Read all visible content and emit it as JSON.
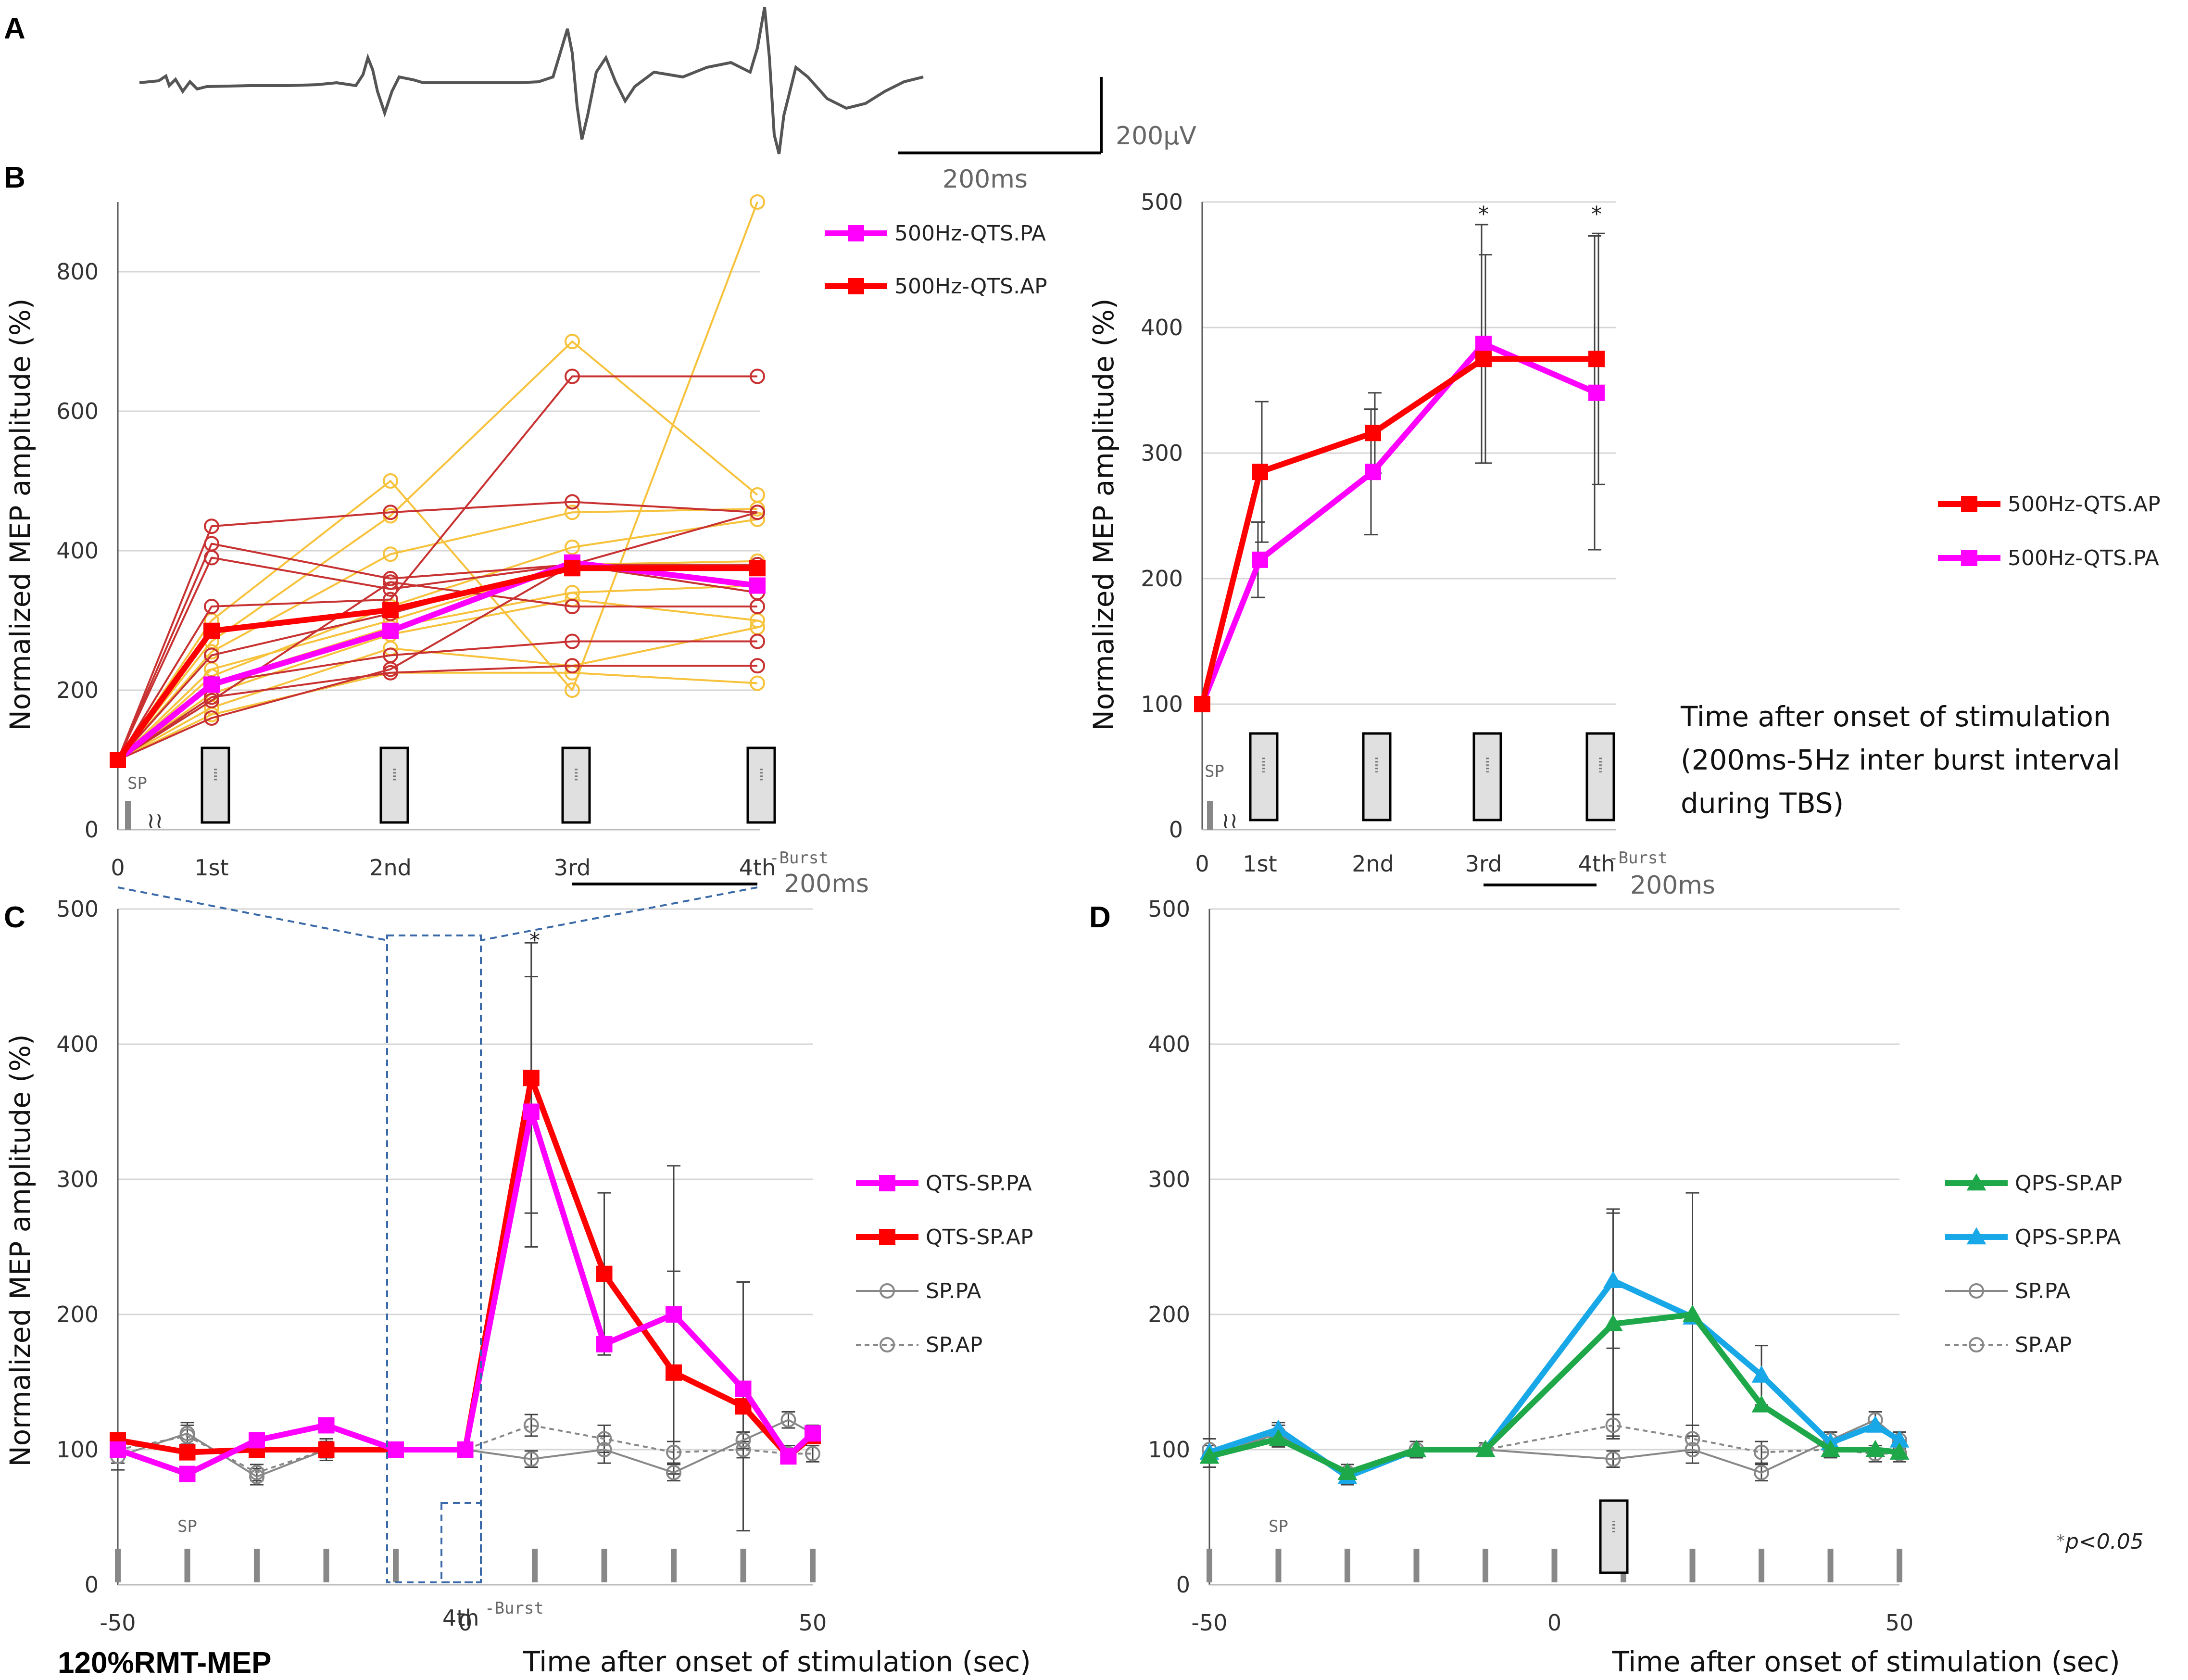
{
  "chart_data": [
    {
      "id": "A",
      "type": "line",
      "title": "",
      "description_values": {
        "amplitude_scale": "200µV",
        "time_scale": "200ms"
      }
    },
    {
      "id": "B_left",
      "type": "line",
      "title": "",
      "ylabel": "Normalized MEP amplitude (%)",
      "xlabel": "",
      "ylim": [
        0,
        900
      ],
      "yticks": [
        0,
        200,
        400,
        600,
        800
      ],
      "categories": [
        "0",
        "1st",
        "2nd",
        "3rd",
        "4th"
      ],
      "burst_suffix": "-Burst",
      "sp_label": "SP",
      "scale_label": "200ms",
      "series": [
        {
          "name": "500Hz-QTS.PA",
          "color": "#ff00ff",
          "values": [
            100,
            208,
            285,
            383,
            350
          ]
        },
        {
          "name": "500Hz-QTS.AP",
          "color": "#ff0000",
          "values": [
            100,
            285,
            315,
            375,
            375
          ]
        }
      ],
      "individual_AP": [
        [
          100,
          435,
          455,
          470,
          455
        ],
        [
          100,
          410,
          360,
          380,
          455
        ],
        [
          100,
          390,
          345,
          380,
          380
        ],
        [
          100,
          320,
          330,
          650,
          650
        ],
        [
          100,
          250,
          310,
          380,
          380
        ],
        [
          100,
          210,
          250,
          270,
          270
        ],
        [
          100,
          190,
          225,
          235,
          235
        ],
        [
          100,
          185,
          355,
          320,
          320
        ],
        [
          100,
          160,
          230,
          380,
          340
        ]
      ],
      "individual_PA": [
        [
          100,
          300,
          500,
          200,
          900
        ],
        [
          100,
          270,
          450,
          700,
          480
        ],
        [
          100,
          255,
          395,
          455,
          460
        ],
        [
          100,
          220,
          320,
          405,
          445
        ],
        [
          100,
          210,
          290,
          340,
          350
        ],
        [
          100,
          195,
          280,
          330,
          300
        ],
        [
          100,
          175,
          260,
          235,
          290
        ],
        [
          100,
          165,
          225,
          225,
          210
        ],
        [
          100,
          230,
          300,
          380,
          385
        ]
      ]
    },
    {
      "id": "B_right",
      "type": "line",
      "ylabel": "Normalized MEP amplitude (%)",
      "xlabel": "Time after onset of stimulation (200ms-5Hz inter burst interval during TBS)",
      "xlabel_lines": [
        "Time after onset of stimulation",
        "(200ms-5Hz inter burst interval",
        "during TBS)"
      ],
      "ylim": [
        0,
        500
      ],
      "yticks": [
        0,
        100,
        200,
        300,
        400,
        500
      ],
      "categories": [
        "0",
        "1st",
        "2nd",
        "3rd",
        "4th"
      ],
      "burst_suffix": "-Burst",
      "sp_label": "SP",
      "scale_label": "200ms",
      "significance": [
        "",
        "",
        "",
        "*",
        "*"
      ],
      "series": [
        {
          "name": "500Hz-QTS.AP",
          "color": "#ff0000",
          "values": [
            100,
            285,
            316,
            375,
            375
          ],
          "err": [
            0,
            56,
            32,
            83,
            100
          ]
        },
        {
          "name": "500Hz-QTS.PA",
          "color": "#ff00ff",
          "values": [
            100,
            215,
            285,
            387,
            348
          ],
          "err": [
            0,
            30,
            50,
            95,
            125
          ]
        }
      ]
    },
    {
      "id": "C",
      "type": "line",
      "ylabel": "Normalized MEP amplitude (%)",
      "xlabel": "Time after onset of stimulation (sec)",
      "ylim": [
        0,
        500
      ],
      "yticks": [
        0,
        100,
        200,
        300,
        400,
        500
      ],
      "xlim": [
        -50,
        50
      ],
      "xticks": [
        -50,
        0,
        50
      ],
      "burst_label": "4th",
      "burst_suffix": "-Burst",
      "sp_label": "SP",
      "footer_label": "120%RMT-MEP",
      "significance_at": 10,
      "x": [
        -50,
        -40,
        -30,
        -20,
        -10,
        0,
        10,
        20,
        30,
        40,
        50
      ],
      "series": [
        {
          "name": "QTS-SP.PA",
          "color": "#ff00ff",
          "values": [
            100,
            82,
            107,
            118,
            100,
            100,
            350,
            178,
            200,
            145,
            95,
            112
          ],
          "x": [
            -50,
            -40,
            -30,
            -20,
            -10,
            0,
            9.5,
            20,
            30,
            40,
            46.5,
            50
          ],
          "err": [
            0,
            0,
            0,
            0,
            0,
            0,
            100,
            0,
            110,
            0,
            0,
            0
          ]
        },
        {
          "name": "QTS-SP.AP",
          "color": "#ff0000",
          "values": [
            107,
            98,
            100,
            100,
            100,
            100,
            375,
            230,
            157,
            132,
            95,
            110
          ],
          "x": [
            -50,
            -40,
            -30,
            -20,
            -10,
            0,
            9.5,
            20,
            30,
            40,
            46.5,
            50
          ],
          "err": [
            0,
            0,
            0,
            0,
            0,
            0,
            100,
            60,
            75,
            92,
            0,
            0
          ]
        },
        {
          "name": "SP.PA",
          "color": "#888888",
          "dash": false,
          "values": [
            95,
            112,
            80,
            100,
            100,
            100,
            93,
            100,
            83,
            107,
            122,
            112
          ],
          "x": [
            -50,
            -40,
            -30,
            -20,
            -10,
            0,
            9.5,
            20,
            30,
            40,
            46.5,
            50
          ],
          "err": [
            10,
            8,
            6,
            8,
            5,
            5,
            6,
            10,
            6,
            6,
            6,
            6
          ]
        },
        {
          "name": "SP.AP",
          "color": "#888888",
          "dash": true,
          "values": [
            100,
            110,
            83,
            100,
            100,
            100,
            118,
            108,
            98,
            100,
            97,
            97
          ],
          "x": [
            -50,
            -40,
            -30,
            -20,
            -10,
            0,
            9.5,
            20,
            30,
            40,
            46.5,
            50
          ],
          "err": [
            10,
            8,
            6,
            6,
            5,
            5,
            8,
            10,
            8,
            6,
            6,
            6
          ]
        }
      ]
    },
    {
      "id": "D",
      "type": "line",
      "ylabel": "",
      "xlabel": "Time after onset of stimulation (sec)",
      "ylim": [
        0,
        500
      ],
      "yticks": [
        0,
        100,
        200,
        300,
        400,
        500
      ],
      "xlim": [
        -50,
        50
      ],
      "xticks": [
        -50,
        0,
        50
      ],
      "sp_label": "SP",
      "pnote_star": "*",
      "pnote_text": "p<0.05",
      "series": [
        {
          "name": "QPS-SP.AP",
          "color": "#1ea84a",
          "values": [
            95,
            108,
            83,
            100,
            100,
            193,
            200,
            133,
            100,
            100,
            98
          ],
          "x": [
            -50,
            -40,
            -30,
            -20,
            -10,
            8.5,
            20,
            30,
            40,
            46.5,
            50
          ],
          "err": [
            0,
            0,
            0,
            0,
            0,
            85,
            90,
            0,
            0,
            0,
            0
          ]
        },
        {
          "name": "QPS-SP.PA",
          "color": "#18a8e8",
          "values": [
            98,
            115,
            80,
            100,
            100,
            225,
            198,
            155,
            105,
            118,
            107
          ],
          "x": [
            -50,
            -40,
            -30,
            -20,
            -10,
            8.5,
            20,
            30,
            40,
            46.5,
            50
          ],
          "err": [
            0,
            0,
            0,
            0,
            0,
            50,
            0,
            22,
            0,
            0,
            0
          ]
        },
        {
          "name": "SP.PA",
          "color": "#888888",
          "dash": false,
          "values": [
            95,
            112,
            80,
            100,
            100,
            93,
            100,
            83,
            107,
            122,
            107
          ],
          "x": [
            -50,
            -40,
            -30,
            -20,
            -10,
            8.5,
            20,
            30,
            40,
            46.5,
            50
          ],
          "err": [
            8,
            8,
            6,
            6,
            5,
            6,
            10,
            6,
            6,
            6,
            6
          ]
        },
        {
          "name": "SP.AP",
          "color": "#888888",
          "dash": true,
          "values": [
            100,
            110,
            83,
            100,
            100,
            118,
            108,
            98,
            100,
            97,
            97
          ],
          "x": [
            -50,
            -40,
            -30,
            -20,
            -10,
            8.5,
            20,
            30,
            40,
            46.5,
            50
          ],
          "err": [
            8,
            8,
            6,
            6,
            5,
            8,
            10,
            8,
            6,
            6,
            6
          ]
        }
      ]
    }
  ],
  "labels": {
    "A": "A",
    "B": "B",
    "C": "C",
    "D": "D"
  }
}
